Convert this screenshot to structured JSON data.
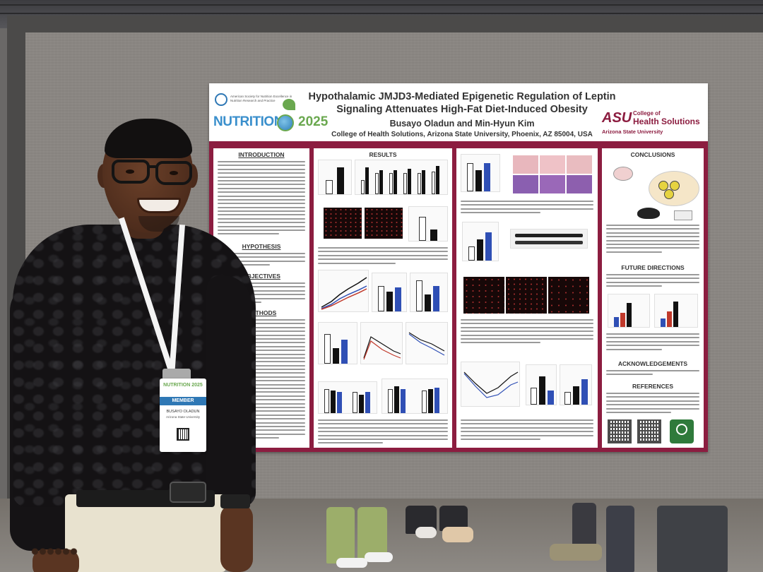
{
  "poster": {
    "title_line1": "Hypothalamic JMJD3-Mediated Epigenetic Regulation of Leptin",
    "title_line2": "Signaling Attenuates High-Fat Diet-Induced Obesity",
    "authors": "Busayo Oladun and Min-Hyun Kim",
    "affiliation": "College of Health Solutions, Arizona State University, Phoenix, AZ 85004, USA",
    "conference_word": "NUTRITION",
    "conference_year": "2025",
    "asn_text": "American Society for Nutrition Excellence in Nutrition Research and Practice",
    "asu_mark": "ASU",
    "asu_college": "College of",
    "asu_unit": "Health Solutions",
    "asu_university": "Arizona State University",
    "sections": {
      "introduction": "INTRODUCTION",
      "hypothesis": "HYPOTHESIS",
      "objectives": "OBJECTIVES",
      "methods": "METHODS",
      "results": "RESULTS",
      "conclusions": "CONCLUSIONS",
      "future_directions": "FUTURE DIRECTIONS",
      "acknowledgements": "ACKNOWLEDGEMENTS",
      "references": "REFERENCES"
    }
  },
  "badge": {
    "logo_word": "NUTRITION",
    "logo_year": "2025",
    "role": "MEMBER",
    "name": "BUSAYO OLADUN",
    "org": "Arizona State University"
  }
}
